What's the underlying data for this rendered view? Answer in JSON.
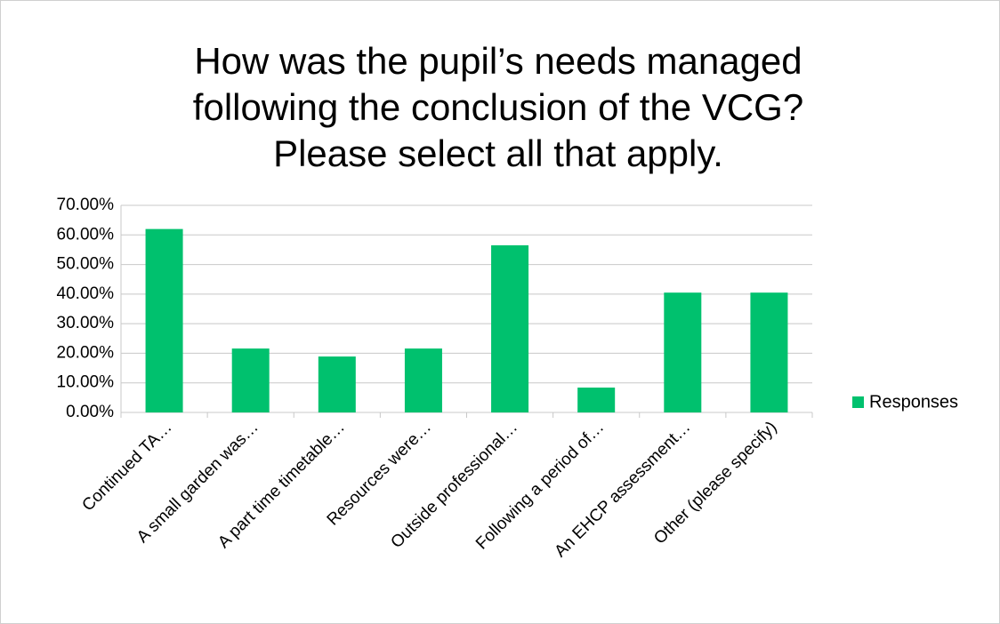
{
  "chart_data": {
    "type": "bar",
    "title": [
      "How was the pupil’s needs managed",
      "following the conclusion of the VCG?",
      "Please select all that apply."
    ],
    "categories": [
      "Continued TA…",
      "A small garden was…",
      "A part time timetable…",
      "Resources were…",
      "Outside professional…",
      "Following a period of…",
      "An EHCP assessment…",
      "Other (please specify)"
    ],
    "series": [
      {
        "name": "Responses",
        "color": "#00c16e",
        "values": [
          62,
          21.6,
          18.9,
          21.6,
          56.5,
          8.4,
          40.5,
          40.5
        ]
      }
    ],
    "ylim": [
      0,
      70
    ],
    "yticks": [
      {
        "value": 0,
        "label": "0.00%"
      },
      {
        "value": 10,
        "label": "10.00%"
      },
      {
        "value": 20,
        "label": "20.00%"
      },
      {
        "value": 30,
        "label": "30.00%"
      },
      {
        "value": 40,
        "label": "40.00%"
      },
      {
        "value": 50,
        "label": "50.00%"
      },
      {
        "value": 60,
        "label": "60.00%"
      },
      {
        "value": 70,
        "label": "70.00%"
      }
    ],
    "grid": true,
    "legend": "right"
  }
}
